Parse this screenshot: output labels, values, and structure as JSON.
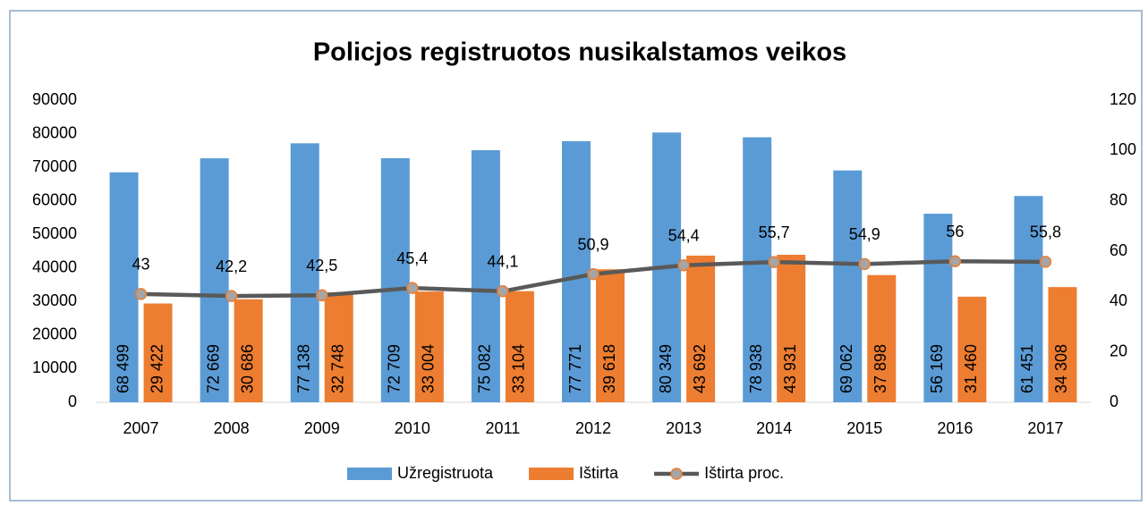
{
  "chart_data": {
    "type": "bar-line",
    "title": "Policjos registruotos nusikalstamos veikos",
    "categories": [
      "2007",
      "2008",
      "2009",
      "2010",
      "2011",
      "2012",
      "2013",
      "2014",
      "2015",
      "2016",
      "2017"
    ],
    "series": [
      {
        "name": "Užregistruota",
        "color": "#5b9bd5",
        "type": "bar",
        "values": [
          68499,
          72669,
          77138,
          72709,
          75082,
          77771,
          80349,
          78938,
          69062,
          56169,
          61451
        ],
        "value_labels": [
          "68 499",
          "72 669",
          "77 138",
          "72 709",
          "75 082",
          "77 771",
          "80 349",
          "78 938",
          "69 062",
          "56 169",
          "61 451"
        ]
      },
      {
        "name": "Ištirta",
        "color": "#ed7d31",
        "type": "bar",
        "values": [
          29422,
          30686,
          32748,
          33004,
          33104,
          39618,
          43692,
          43931,
          37898,
          31460,
          34308
        ],
        "value_labels": [
          "29 422",
          "30 686",
          "32 748",
          "33 004",
          "33 104",
          "39 618",
          "43 692",
          "43 931",
          "37 898",
          "31 460",
          "34 308"
        ]
      },
      {
        "name": "Ištirta proc.",
        "color": "#595959",
        "marker_color": "#a5a5a5",
        "marker_edge": "#ed7d31",
        "type": "line",
        "axis": "y2",
        "values": [
          43,
          42.2,
          42.5,
          45.4,
          44.1,
          50.9,
          54.4,
          55.7,
          54.9,
          56,
          55.8
        ],
        "value_labels": [
          "43",
          "42,2",
          "42,5",
          "45,4",
          "44,1",
          "50,9",
          "54,4",
          "55,7",
          "54,9",
          "56",
          "55,8"
        ]
      }
    ],
    "ylim": [
      0,
      90000
    ],
    "yticks": [
      0,
      10000,
      20000,
      30000,
      40000,
      50000,
      60000,
      70000,
      80000,
      90000
    ],
    "y2lim": [
      0,
      120
    ],
    "y2ticks": [
      0,
      20,
      40,
      60,
      80,
      100,
      120
    ],
    "legend": "bottom"
  }
}
